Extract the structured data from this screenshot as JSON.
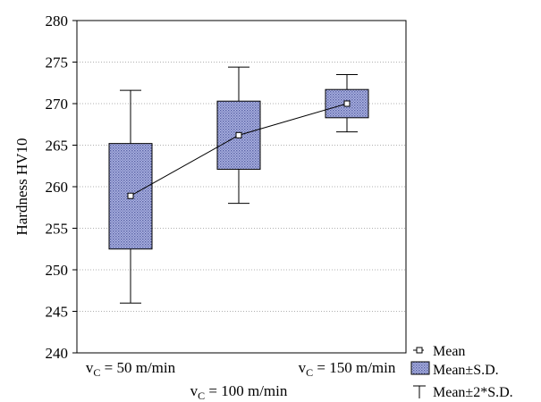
{
  "chart_data": {
    "type": "box",
    "ylabel": "Hardness HV10",
    "ylim": [
      240,
      280
    ],
    "yticks": [
      "240",
      "245",
      "250",
      "255",
      "260",
      "265",
      "270",
      "275",
      "280"
    ],
    "grid": "horizontal dotted",
    "categories": [
      {
        "main": "v",
        "sub": "C",
        "rest": " = 50 m/min"
      },
      {
        "main": "v",
        "sub": "C",
        "rest": " = 100 m/min"
      },
      {
        "main": "v",
        "sub": "C",
        "rest": " = 150 m/min"
      }
    ],
    "groups": [
      {
        "mean": 258.9,
        "sd_low": 252.5,
        "sd_high": 265.2,
        "whisker_low": 246.0,
        "whisker_high": 271.6
      },
      {
        "mean": 266.2,
        "sd_low": 262.1,
        "sd_high": 270.3,
        "whisker_low": 258.0,
        "whisker_high": 274.4
      },
      {
        "mean": 270.0,
        "sd_low": 268.3,
        "sd_high": 271.7,
        "whisker_low": 266.6,
        "whisker_high": 273.5
      }
    ],
    "legend": {
      "placement": "bottom-right",
      "items": [
        "Mean",
        "Mean±S.D.",
        "Mean±2*S.D."
      ]
    },
    "colors": {
      "box_fill": "#9aa3d6",
      "box_pattern": "#5a63a8",
      "line": "#000000",
      "grid": "#b0b0b0"
    }
  }
}
